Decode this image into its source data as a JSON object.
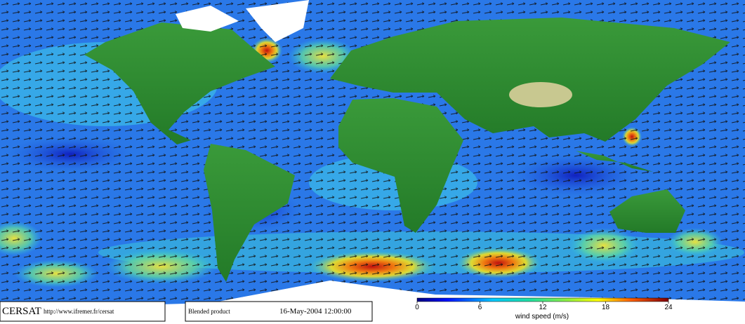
{
  "footer": {
    "brand": "CERSAT",
    "url": "http://www.ifremer.fr/cersat",
    "product": "Blended product",
    "date": "16-May-2004 12:00:00"
  },
  "colorbar": {
    "label": "wind speed (m/s)",
    "lim": [
      0,
      24
    ],
    "ticks": [
      0,
      6,
      12,
      18,
      24
    ]
  }
}
